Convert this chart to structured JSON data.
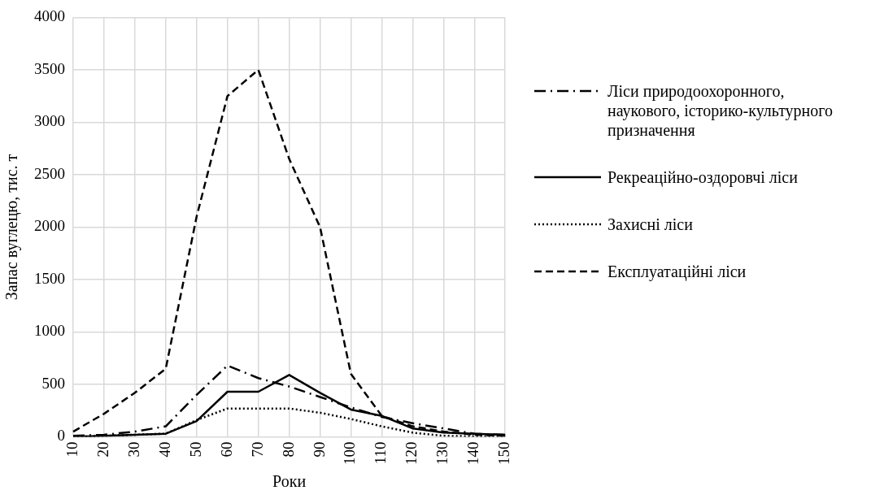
{
  "chart_data": {
    "type": "line",
    "xlabel": "Роки",
    "ylabel": "Запас вуглецю, тис. т",
    "categories": [
      "10",
      "20",
      "30",
      "40",
      "50",
      "60",
      "70",
      "80",
      "90",
      "100",
      "110",
      "120",
      "130",
      "140",
      "150"
    ],
    "ylim": [
      0,
      4000
    ],
    "yticks": [
      0,
      500,
      1000,
      1500,
      2000,
      2500,
      3000,
      3500,
      4000
    ],
    "grid": true,
    "legend": "right",
    "marker": "none",
    "series": [
      {
        "name": "Ліси природоохоронного, наукового, історико-культурного призначення",
        "color": "#000000",
        "line_style": "dashdot",
        "values": [
          10,
          20,
          50,
          100,
          400,
          680,
          560,
          480,
          380,
          280,
          190,
          130,
          80,
          30,
          20
        ]
      },
      {
        "name": "Рекреаційно-оздоровчі ліси",
        "color": "#000000",
        "line_style": "solid",
        "values": [
          0,
          10,
          20,
          30,
          150,
          430,
          430,
          590,
          420,
          260,
          200,
          80,
          40,
          30,
          20
        ]
      },
      {
        "name": "Захисні ліси",
        "color": "#000000",
        "line_style": "dotted",
        "values": [
          0,
          10,
          20,
          30,
          160,
          270,
          270,
          270,
          230,
          170,
          100,
          40,
          10,
          5,
          5
        ]
      },
      {
        "name": "Експлуатаційні  ліси",
        "color": "#000000",
        "line_style": "dashed",
        "values": [
          50,
          220,
          420,
          650,
          2100,
          3250,
          3500,
          2650,
          2000,
          600,
          200,
          100,
          50,
          20,
          10
        ]
      }
    ]
  }
}
